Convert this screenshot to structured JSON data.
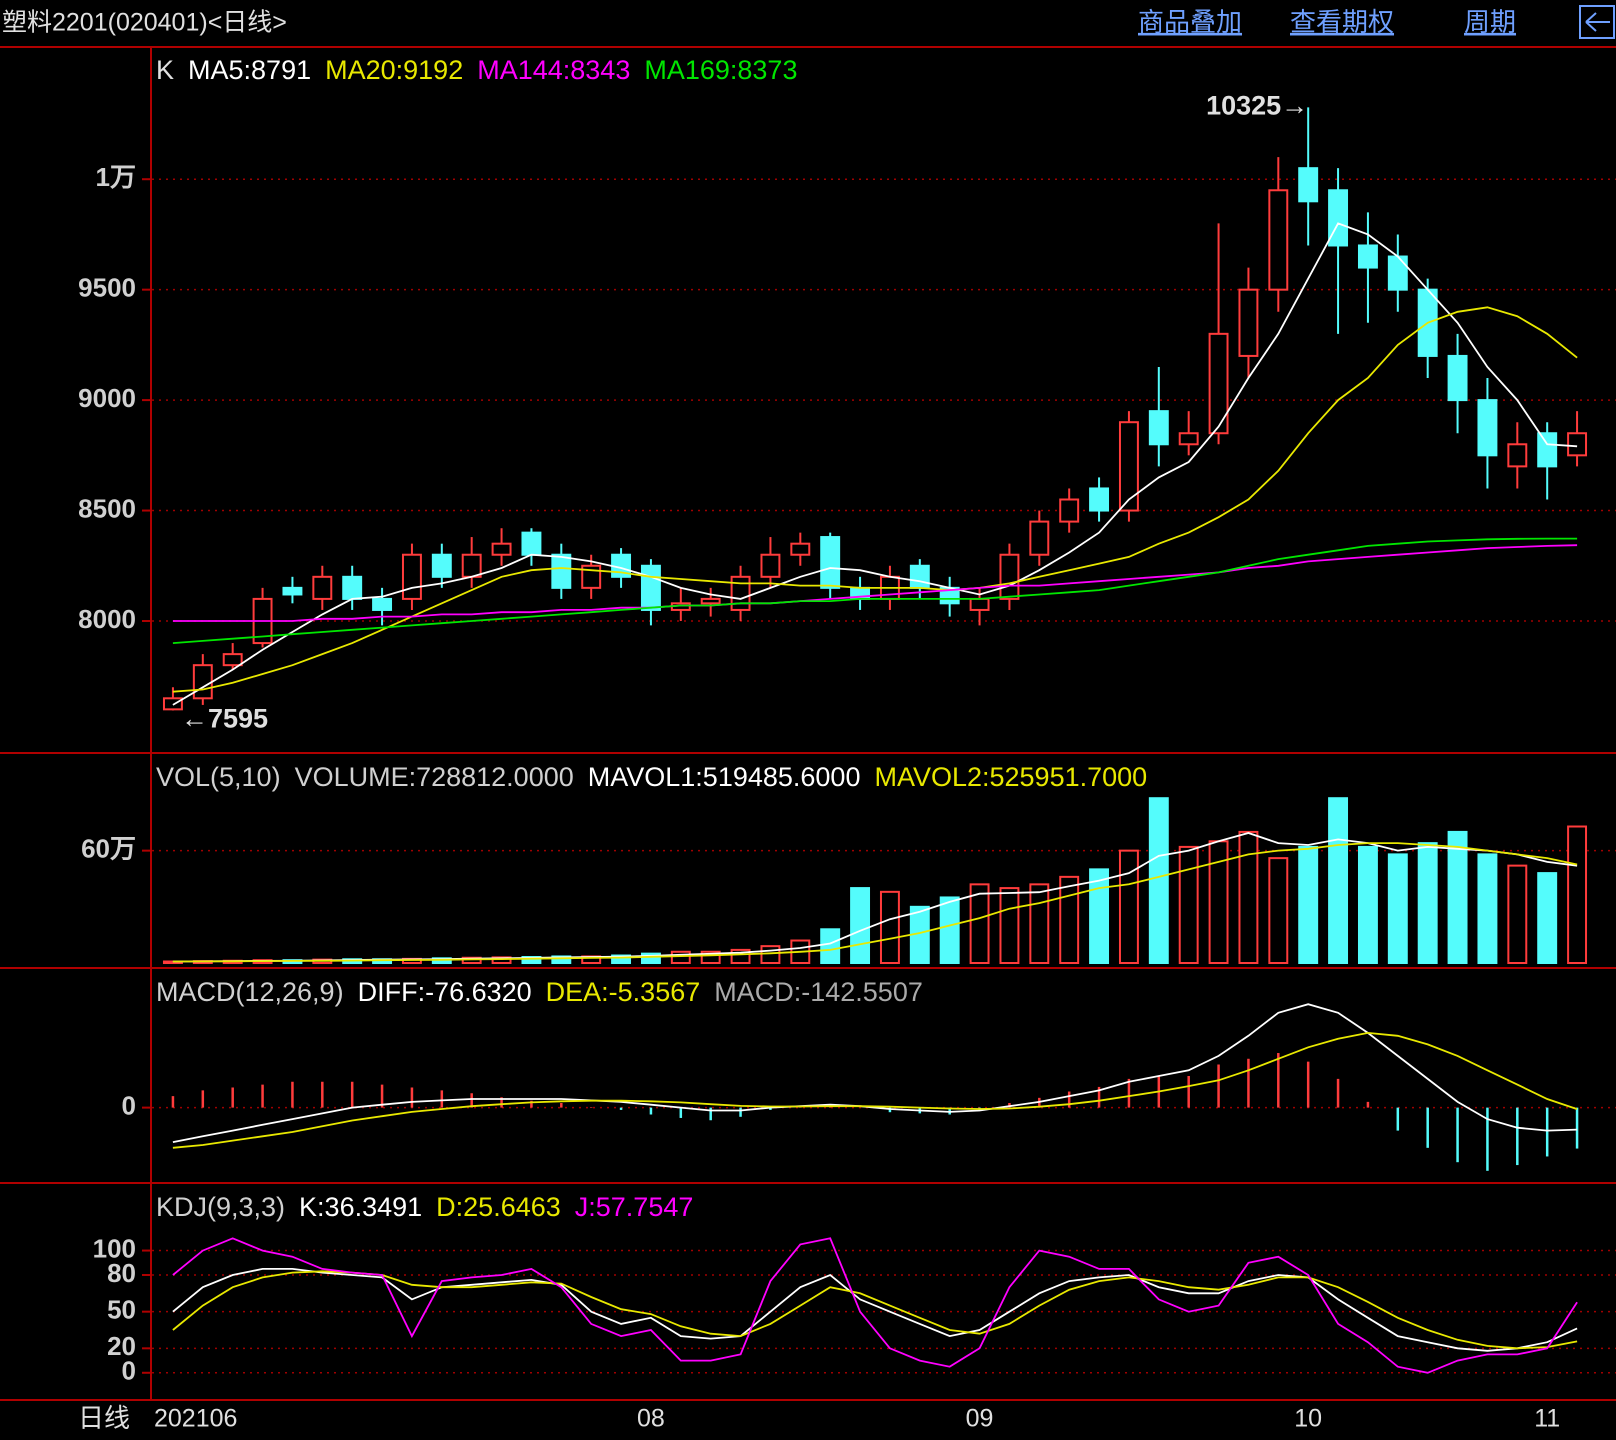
{
  "header": {
    "title": "塑料2201(020401)<日线>",
    "buttons": [
      "商品叠加",
      "查看期权",
      "周期"
    ],
    "period": "日线"
  },
  "chart_data": [
    {
      "type": "candlestick",
      "label": "K",
      "categories": [
        "202106",
        null,
        null,
        null,
        null,
        null,
        null,
        null,
        null,
        null,
        null,
        null,
        null,
        null,
        null,
        null,
        "08",
        null,
        null,
        null,
        null,
        null,
        null,
        null,
        null,
        null,
        null,
        "09",
        null,
        null,
        null,
        null,
        null,
        null,
        null,
        null,
        null,
        null,
        "10",
        null,
        null,
        null,
        null,
        null,
        null,
        null,
        "11",
        null
      ],
      "open": [
        7600,
        7650,
        7800,
        7900,
        8150,
        8100,
        8200,
        8100,
        8100,
        8300,
        8200,
        8300,
        8400,
        8300,
        8150,
        8300,
        8250,
        8050,
        8080,
        8050,
        8200,
        8300,
        8380,
        8150,
        8100,
        8250,
        8150,
        8050,
        8100,
        8300,
        8450,
        8600,
        8500,
        8950,
        8800,
        8850,
        9200,
        9500,
        10050,
        9950,
        9700,
        9650,
        9500,
        9200,
        9000,
        8700,
        8850,
        8750
      ],
      "high": [
        7700,
        7850,
        7900,
        8150,
        8200,
        8250,
        8250,
        8150,
        8350,
        8350,
        8380,
        8420,
        8420,
        8350,
        8300,
        8330,
        8280,
        8150,
        8150,
        8250,
        8380,
        8400,
        8400,
        8200,
        8250,
        8280,
        8200,
        8150,
        8350,
        8500,
        8600,
        8650,
        8950,
        9150,
        8950,
        9800,
        9600,
        10100,
        10325,
        10050,
        9850,
        9750,
        9550,
        9300,
        9100,
        8900,
        8900,
        8950
      ],
      "low": [
        7595,
        7620,
        7780,
        7880,
        8080,
        8050,
        8050,
        7980,
        8050,
        8150,
        8150,
        8250,
        8250,
        8100,
        8100,
        8150,
        7980,
        8000,
        8020,
        8000,
        8150,
        8250,
        8100,
        8050,
        8050,
        8100,
        8020,
        7980,
        8050,
        8250,
        8400,
        8450,
        8450,
        8700,
        8750,
        8800,
        9100,
        9400,
        9700,
        9300,
        9350,
        9400,
        9100,
        8850,
        8600,
        8600,
        8550,
        8700
      ],
      "close": [
        7650,
        7800,
        7850,
        8100,
        8120,
        8200,
        8100,
        8050,
        8300,
        8200,
        8300,
        8350,
        8300,
        8150,
        8250,
        8200,
        8050,
        8080,
        8100,
        8200,
        8300,
        8350,
        8150,
        8100,
        8200,
        8150,
        8080,
        8100,
        8300,
        8450,
        8550,
        8500,
        8900,
        8800,
        8850,
        9300,
        9500,
        9950,
        9900,
        9700,
        9600,
        9500,
        9200,
        9000,
        8750,
        8800,
        8700,
        8850
      ],
      "up_color": "#ff3c3c",
      "down_color": "#54fcfc",
      "series": [
        {
          "name": "MA5:8791",
          "color": "#ffffff",
          "values": [
            7620,
            7700,
            7780,
            7870,
            7950,
            8030,
            8100,
            8110,
            8150,
            8170,
            8200,
            8240,
            8300,
            8290,
            8270,
            8240,
            8200,
            8150,
            8120,
            8100,
            8150,
            8200,
            8240,
            8230,
            8200,
            8180,
            8150,
            8120,
            8160,
            8230,
            8310,
            8400,
            8550,
            8650,
            8720,
            8880,
            9100,
            9300,
            9550,
            9800,
            9750,
            9650,
            9500,
            9350,
            9150,
            9000,
            8800,
            8791
          ]
        },
        {
          "name": "MA20:9192",
          "color": "#e8e800",
          "values": [
            7680,
            7690,
            7720,
            7760,
            7800,
            7850,
            7900,
            7960,
            8020,
            8080,
            8140,
            8200,
            8230,
            8240,
            8230,
            8220,
            8200,
            8190,
            8180,
            8170,
            8170,
            8160,
            8160,
            8150,
            8150,
            8150,
            8140,
            8150,
            8170,
            8200,
            8230,
            8260,
            8290,
            8350,
            8400,
            8470,
            8550,
            8680,
            8850,
            9000,
            9100,
            9250,
            9350,
            9400,
            9420,
            9380,
            9300,
            9192
          ]
        },
        {
          "name": "MA144:8343",
          "color": "#ff00ff",
          "values": [
            8000,
            8000,
            8000,
            8000,
            8000,
            8010,
            8010,
            8020,
            8020,
            8030,
            8030,
            8040,
            8040,
            8050,
            8050,
            8060,
            8060,
            8070,
            8070,
            8080,
            8080,
            8090,
            8100,
            8110,
            8120,
            8130,
            8140,
            8150,
            8160,
            8160,
            8170,
            8180,
            8190,
            8200,
            8210,
            8220,
            8240,
            8250,
            8270,
            8280,
            8290,
            8300,
            8310,
            8320,
            8330,
            8335,
            8340,
            8343
          ]
        },
        {
          "name": "MA169:8373",
          "color": "#00e600",
          "values": [
            7900,
            7910,
            7920,
            7930,
            7940,
            7950,
            7960,
            7970,
            7980,
            7990,
            8000,
            8010,
            8020,
            8030,
            8040,
            8050,
            8060,
            8070,
            8070,
            8080,
            8080,
            8090,
            8090,
            8100,
            8100,
            8100,
            8100,
            8100,
            8110,
            8120,
            8130,
            8140,
            8160,
            8180,
            8200,
            8220,
            8250,
            8280,
            8300,
            8320,
            8340,
            8350,
            8360,
            8365,
            8370,
            8372,
            8373,
            8373
          ]
        }
      ],
      "annotations": [
        "10325→",
        "←7595"
      ],
      "ylim": [
        7425,
        10585
      ],
      "yticks": [
        8000,
        8500,
        9000,
        9500,
        {
          "value": 10000,
          "label": "1万"
        }
      ],
      "grid": true
    },
    {
      "type": "bar",
      "label": "VOL(5,10)",
      "values": [
        8000,
        10000,
        12000,
        15000,
        15000,
        18000,
        20000,
        20000,
        22000,
        25000,
        28000,
        30000,
        32000,
        35000,
        35000,
        40000,
        50000,
        60000,
        60000,
        70000,
        90000,
        120000,
        180000,
        400000,
        380000,
        300000,
        350000,
        420000,
        400000,
        420000,
        460000,
        500000,
        600000,
        880000,
        620000,
        650000,
        700000,
        560000,
        620000,
        880000,
        620000,
        580000,
        640000,
        700000,
        580000,
        520000,
        480000,
        728812
      ],
      "value_name": "VOLUME:728812.0000",
      "series": [
        {
          "name": "MAVOL1:519485.6000",
          "color": "#ffffff",
          "values": [
            8000,
            9000,
            10000,
            11000,
            12000,
            14000,
            16000,
            18000,
            19000,
            21000,
            23000,
            25000,
            27000,
            30000,
            32000,
            34000,
            38000,
            44000,
            49000,
            55000,
            66000,
            80000,
            104000,
            172000,
            234000,
            274000,
            326000,
            370000,
            374000,
            378000,
            410000,
            440000,
            480000,
            572000,
            600000,
            650000,
            694000,
            640000,
            630000,
            660000,
            640000,
            600000,
            620000,
            610000,
            600000,
            580000,
            540000,
            519486
          ]
        },
        {
          "name": "MAVOL2:525951.7000",
          "color": "#e8e800",
          "values": [
            8000,
            8500,
            9000,
            10000,
            11000,
            12000,
            13000,
            15000,
            16000,
            17000,
            19000,
            21000,
            23000,
            25000,
            27000,
            29000,
            33000,
            37000,
            41000,
            46000,
            52000,
            60000,
            70000,
            100000,
            130000,
            160000,
            200000,
            240000,
            290000,
            320000,
            360000,
            400000,
            420000,
            460000,
            500000,
            540000,
            580000,
            600000,
            610000,
            630000,
            640000,
            640000,
            630000,
            620000,
            600000,
            580000,
            560000,
            525952
          ]
        }
      ],
      "ylim": [
        0,
        1100000
      ],
      "yticks": [
        {
          "value": 600000,
          "label": "60万"
        }
      ],
      "grid": true
    },
    {
      "type": "macd",
      "label": "MACD(12,26,9)",
      "series": [
        {
          "name": "DIFF:-76.6320",
          "color": "#ffffff",
          "values": [
            -120,
            -100,
            -80,
            -60,
            -40,
            -20,
            0,
            10,
            20,
            25,
            30,
            30,
            30,
            30,
            25,
            20,
            10,
            0,
            -10,
            -10,
            0,
            5,
            10,
            5,
            -5,
            -10,
            -15,
            -10,
            5,
            20,
            40,
            60,
            90,
            110,
            130,
            180,
            250,
            330,
            360,
            330,
            260,
            180,
            100,
            20,
            -40,
            -70,
            -80,
            -76.632
          ]
        },
        {
          "name": "DEA:-5.3567",
          "color": "#e8e800",
          "values": [
            -140,
            -130,
            -115,
            -100,
            -85,
            -65,
            -45,
            -30,
            -15,
            -5,
            5,
            12,
            18,
            22,
            24,
            24,
            22,
            18,
            12,
            6,
            4,
            4,
            5,
            5,
            3,
            0,
            -3,
            -5,
            -3,
            3,
            12,
            24,
            40,
            56,
            75,
            95,
            130,
            170,
            210,
            240,
            260,
            250,
            220,
            180,
            130,
            80,
            30,
            -5.3567
          ]
        },
        {
          "name": "MACD:-142.5507",
          "color": "#aaaaaa",
          "histogram": true,
          "values": [
            40,
            60,
            70,
            80,
            90,
            90,
            90,
            80,
            70,
            60,
            50,
            36,
            24,
            16,
            2,
            -8,
            -24,
            -36,
            -44,
            -32,
            -8,
            2,
            10,
            0,
            -16,
            -20,
            -24,
            -10,
            16,
            34,
            56,
            72,
            100,
            108,
            110,
            150,
            170,
            190,
            160,
            100,
            20,
            -80,
            -140,
            -190,
            -220,
            -200,
            -170,
            -142.5507
          ]
        }
      ],
      "up_color": "#ff3c3c",
      "down_color": "#54fcfc",
      "ylim": [
        -245,
        472
      ],
      "yticks": [
        0
      ],
      "grid": true
    },
    {
      "type": "line",
      "label": "KDJ(9,3,3)",
      "series": [
        {
          "name": "K:36.3491",
          "color": "#ffffff",
          "values": [
            50,
            70,
            80,
            85,
            85,
            82,
            80,
            78,
            60,
            70,
            72,
            74,
            76,
            72,
            50,
            40,
            45,
            30,
            28,
            30,
            50,
            70,
            80,
            60,
            50,
            40,
            30,
            35,
            50,
            65,
            75,
            78,
            80,
            70,
            65,
            65,
            75,
            80,
            78,
            60,
            45,
            30,
            25,
            20,
            18,
            20,
            25,
            36.3491
          ]
        },
        {
          "name": "D:25.6463",
          "color": "#e8e800",
          "values": [
            35,
            55,
            70,
            78,
            82,
            83,
            82,
            80,
            72,
            70,
            70,
            72,
            74,
            73,
            62,
            52,
            48,
            38,
            32,
            30,
            40,
            55,
            70,
            65,
            55,
            45,
            35,
            32,
            40,
            55,
            68,
            75,
            78,
            75,
            70,
            68,
            72,
            78,
            78,
            70,
            58,
            45,
            35,
            27,
            22,
            20,
            21,
            25.6463
          ]
        },
        {
          "name": "J:57.7547",
          "color": "#ff00ff",
          "values": [
            80,
            100,
            110,
            100,
            95,
            85,
            82,
            80,
            30,
            75,
            78,
            80,
            85,
            70,
            40,
            30,
            35,
            10,
            10,
            15,
            75,
            105,
            110,
            50,
            20,
            10,
            5,
            20,
            70,
            100,
            95,
            85,
            85,
            60,
            50,
            55,
            90,
            95,
            80,
            40,
            25,
            5,
            0,
            10,
            15,
            15,
            20,
            57.7547
          ]
        }
      ],
      "ylim": [
        -19,
        152
      ],
      "yticks": [
        0,
        20,
        50,
        80,
        100
      ],
      "grid": true
    }
  ]
}
